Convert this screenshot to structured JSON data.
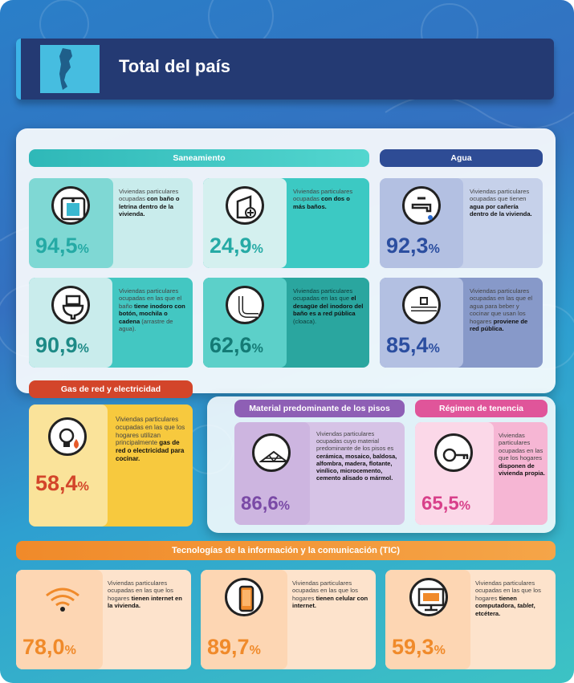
{
  "title": "Total del país",
  "sections": {
    "saneamiento": "Saneamiento",
    "agua": "Agua",
    "gas": "Gas de red y electricidad",
    "pisos": "Material predominante de los pisos",
    "tenencia": "Régimen de tenencia",
    "tic": "Tecnologías de la información y la comunicación (TIC)"
  },
  "cards": {
    "bano": {
      "value": "94,5",
      "unit": "%",
      "text_pre": "Viviendas particulares ocupadas ",
      "text_bold": "con baño o letrina dentro de la vivienda.",
      "icon": "bathroom-icon"
    },
    "dosbanos": {
      "value": "24,9",
      "unit": "%",
      "text_pre": "Viviendas particulares ocupadas ",
      "text_bold": "con dos o más baños.",
      "icon": "shower-plus-icon"
    },
    "agua_caneria": {
      "value": "92,3",
      "unit": "%",
      "text_pre": "Viviendas particulares ocupadas que tienen ",
      "text_bold": "agua por cañería dentro de la vivienda.",
      "icon": "faucet-icon"
    },
    "inodoro": {
      "value": "90,9",
      "unit": "%",
      "text_pre": "Viviendas particulares ocupadas en las que el baño ",
      "text_bold": "tiene inodoro con botón, mochila o cadena",
      "text_post": " (arrastre de agua).",
      "icon": "toilet-icon"
    },
    "cloaca": {
      "value": "62,6",
      "unit": "%",
      "text_pre": "Viviendas particulares ocupadas en las que ",
      "text_bold": "el desagüe del inodoro del baño es a red pública",
      "text_post": " (cloaca).",
      "icon": "pipe-icon"
    },
    "agua_red": {
      "value": "85,4",
      "unit": "%",
      "text_pre": "Viviendas particulares ocupadas en las que el agua para beber y cocinar que usan los hogares ",
      "text_bold": "proviene de red pública.",
      "icon": "water-network-icon"
    },
    "gas": {
      "value": "58,4",
      "unit": "%",
      "text_pre": "Viviendas particulares ocupadas en las que los hogares utilizan principalmente ",
      "text_bold": "gas de red o electricidad para cocinar.",
      "icon": "bulb-flame-icon"
    },
    "pisos": {
      "value": "86,6",
      "unit": "%",
      "text_pre": "Viviendas particulares ocupadas cuyo material predominante de los pisos es ",
      "text_bold": "cerámica, mosaico, baldosa, alfombra, madera, flotante, vinílico, microcemento, cemento alisado o mármol.",
      "icon": "floor-icon"
    },
    "tenencia": {
      "value": "65,5",
      "unit": "%",
      "text_pre": "Viviendas particulares ocupadas en las que los hogares ",
      "text_bold": "disponen de vivienda propia.",
      "icon": "key-icon"
    },
    "internet": {
      "value": "78,0",
      "unit": "%",
      "text_pre": "Viviendas particulares ocupadas en las que los hogares ",
      "text_bold": "tienen internet en la vivienda.",
      "icon": "wifi-icon"
    },
    "celular": {
      "value": "89,7",
      "unit": "%",
      "text_pre": "Viviendas particulares ocupadas en las que los hogares ",
      "text_bold": "tienen celular con internet.",
      "icon": "phone-icon"
    },
    "computadora": {
      "value": "59,3",
      "unit": "%",
      "text_pre": "Viviendas particulares ocupadas en las que los hogares ",
      "text_bold": "tienen computadora, ",
      "text_italic": "tablet",
      "text_post": ", etcétera.",
      "icon": "computer-icon"
    }
  },
  "colors": {
    "teal": "#3cc9c8",
    "navy": "#2b4ea0",
    "red": "#d94a2e",
    "purple": "#9c6cc0",
    "pink": "#e05a9c",
    "orange": "#f08a2a",
    "yellow": "#f2c236"
  }
}
